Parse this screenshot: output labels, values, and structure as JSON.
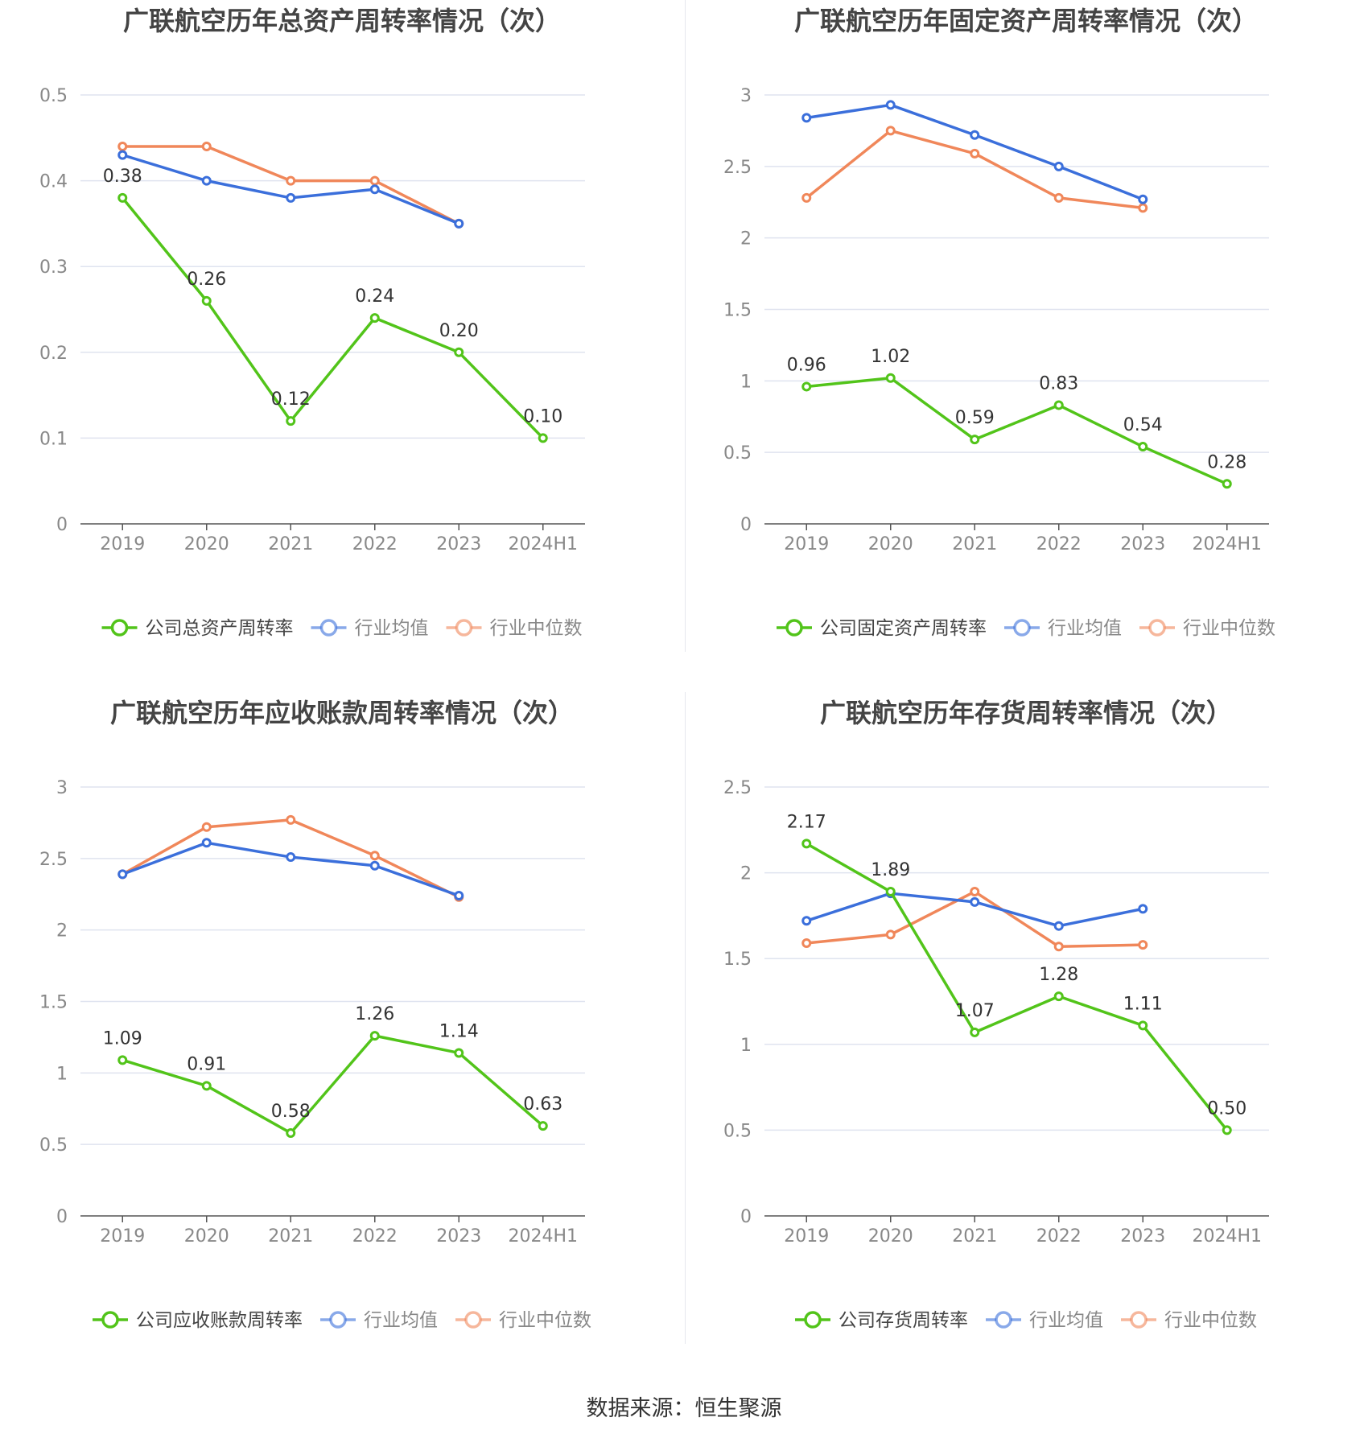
{
  "colors": {
    "company": "#52c41a",
    "industry_mean": "#3b6fdb",
    "industry_median": "#f0875a",
    "grid": "#dfe3ef",
    "axis": "#555555",
    "tick_text": "#888888",
    "title_text": "#444444",
    "legend_text": "#444444",
    "legend_text_muted": "#888888"
  },
  "source": "数据来源：恒生聚源",
  "chart_data": [
    {
      "type": "line",
      "title": "广联航空历年总资产周转率情况（次）",
      "categories": [
        "2019",
        "2020",
        "2021",
        "2022",
        "2023",
        "2024H1"
      ],
      "ylim": [
        0,
        0.5
      ],
      "yticks": [
        0,
        0.1,
        0.2,
        0.3,
        0.4,
        0.5
      ],
      "ytick_labels": [
        "0",
        "0.1",
        "0.2",
        "0.3",
        "0.4",
        "0.5"
      ],
      "grid": true,
      "legend_position": "bottom",
      "series": [
        {
          "name": "公司总资产周转率",
          "role": "company",
          "values": [
            0.38,
            0.26,
            0.12,
            0.24,
            0.2,
            0.1
          ],
          "labels": [
            "0.38",
            "0.26",
            "0.12",
            "0.24",
            "0.20",
            "0.10"
          ]
        },
        {
          "name": "行业均值",
          "role": "industry_mean",
          "values": [
            0.43,
            0.4,
            0.38,
            0.39,
            0.35,
            null
          ]
        },
        {
          "name": "行业中位数",
          "role": "industry_median",
          "values": [
            0.44,
            0.44,
            0.4,
            0.4,
            0.35,
            null
          ]
        }
      ]
    },
    {
      "type": "line",
      "title": "广联航空历年固定资产周转率情况（次）",
      "categories": [
        "2019",
        "2020",
        "2021",
        "2022",
        "2023",
        "2024H1"
      ],
      "ylim": [
        0,
        3
      ],
      "yticks": [
        0,
        0.5,
        1,
        1.5,
        2,
        2.5,
        3
      ],
      "ytick_labels": [
        "0",
        "0.5",
        "1",
        "1.5",
        "2",
        "2.5",
        "3"
      ],
      "grid": true,
      "legend_position": "bottom",
      "series": [
        {
          "name": "公司固定资产周转率",
          "role": "company",
          "values": [
            0.96,
            1.02,
            0.59,
            0.83,
            0.54,
            0.28
          ],
          "labels": [
            "0.96",
            "1.02",
            "0.59",
            "0.83",
            "0.54",
            "0.28"
          ]
        },
        {
          "name": "行业均值",
          "role": "industry_mean",
          "values": [
            2.84,
            2.93,
            2.72,
            2.5,
            2.27,
            null
          ]
        },
        {
          "name": "行业中位数",
          "role": "industry_median",
          "values": [
            2.28,
            2.75,
            2.59,
            2.28,
            2.21,
            null
          ]
        }
      ]
    },
    {
      "type": "line",
      "title": "广联航空历年应收账款周转率情况（次）",
      "categories": [
        "2019",
        "2020",
        "2021",
        "2022",
        "2023",
        "2024H1"
      ],
      "ylim": [
        0,
        3
      ],
      "yticks": [
        0,
        0.5,
        1,
        1.5,
        2,
        2.5,
        3
      ],
      "ytick_labels": [
        "0",
        "0.5",
        "1",
        "1.5",
        "2",
        "2.5",
        "3"
      ],
      "grid": true,
      "legend_position": "bottom",
      "series": [
        {
          "name": "公司应收账款周转率",
          "role": "company",
          "values": [
            1.09,
            0.91,
            0.58,
            1.26,
            1.14,
            0.63
          ],
          "labels": [
            "1.09",
            "0.91",
            "0.58",
            "1.26",
            "1.14",
            "0.63"
          ]
        },
        {
          "name": "行业均值",
          "role": "industry_mean",
          "values": [
            2.39,
            2.61,
            2.51,
            2.45,
            2.24,
            null
          ]
        },
        {
          "name": "行业中位数",
          "role": "industry_median",
          "values": [
            2.39,
            2.72,
            2.77,
            2.52,
            2.23,
            null
          ]
        }
      ]
    },
    {
      "type": "line",
      "title": "广联航空历年存货周转率情况（次）",
      "categories": [
        "2019",
        "2020",
        "2021",
        "2022",
        "2023",
        "2024H1"
      ],
      "ylim": [
        0,
        2.5
      ],
      "yticks": [
        0,
        0.5,
        1,
        1.5,
        2,
        2.5
      ],
      "ytick_labels": [
        "0",
        "0.5",
        "1",
        "1.5",
        "2",
        "2.5"
      ],
      "grid": true,
      "legend_position": "bottom",
      "series": [
        {
          "name": "公司存货周转率",
          "role": "company",
          "values": [
            2.17,
            1.89,
            1.07,
            1.28,
            1.11,
            0.5
          ],
          "labels": [
            "2.17",
            "1.89",
            "1.07",
            "1.28",
            "1.11",
            "0.50"
          ]
        },
        {
          "name": "行业均值",
          "role": "industry_mean",
          "values": [
            1.72,
            1.88,
            1.83,
            1.69,
            1.79,
            null
          ]
        },
        {
          "name": "行业中位数",
          "role": "industry_median",
          "values": [
            1.59,
            1.64,
            1.89,
            1.57,
            1.58,
            null
          ]
        }
      ]
    }
  ]
}
